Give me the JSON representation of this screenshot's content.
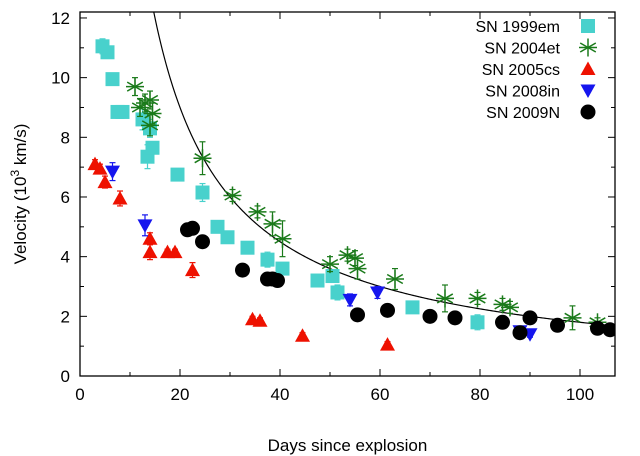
{
  "chart_data": {
    "type": "scatter",
    "xlabel": "Days since explosion",
    "ylabel": {
      "prefix": "Velocity (10",
      "sup": "3",
      "suffix": " km/s)"
    },
    "xlim": [
      0,
      107
    ],
    "ylim": [
      0,
      12.2
    ],
    "x_ticks": [
      "0",
      "20",
      "40",
      "60",
      "80",
      "100"
    ],
    "y_ticks": [
      "0",
      "2",
      "4",
      "6",
      "8",
      "10",
      "12"
    ],
    "grid": false,
    "legend_position": "top-right",
    "series": [
      {
        "name": "SN 1999em",
        "marker": "square",
        "color": "#48d1cc",
        "points": [
          {
            "x": 4.5,
            "y": 11.05,
            "err": 0.25
          },
          {
            "x": 5.5,
            "y": 10.85,
            "err": 0.2
          },
          {
            "x": 6.5,
            "y": 9.95,
            "err": 0.15
          },
          {
            "x": 7.5,
            "y": 8.85,
            "err": 0.15
          },
          {
            "x": 8.5,
            "y": 8.85,
            "err": 0.15
          },
          {
            "x": 12.5,
            "y": 8.6,
            "err": 0.35
          },
          {
            "x": 13.5,
            "y": 7.35,
            "err": 0.4
          },
          {
            "x": 14,
            "y": 8.3,
            "err": 0.3
          },
          {
            "x": 14.5,
            "y": 7.65,
            "err": 0.2
          },
          {
            "x": 19.5,
            "y": 6.75,
            "err": 0.15
          },
          {
            "x": 24.5,
            "y": 6.15,
            "err": 0.3
          },
          {
            "x": 27.5,
            "y": 5.0,
            "err": 0.15
          },
          {
            "x": 29.5,
            "y": 4.65,
            "err": 0.15
          },
          {
            "x": 33.5,
            "y": 4.3,
            "err": 0.15
          },
          {
            "x": 37.5,
            "y": 3.9,
            "err": 0.25
          },
          {
            "x": 40.5,
            "y": 3.6,
            "err": 0.15
          },
          {
            "x": 47.5,
            "y": 3.2,
            "err": 0.2
          },
          {
            "x": 50.5,
            "y": 3.35,
            "err": 0.15
          },
          {
            "x": 51.5,
            "y": 2.8,
            "err": 0.25
          },
          {
            "x": 66.5,
            "y": 2.3,
            "err": 0.15
          },
          {
            "x": 79.5,
            "y": 1.8,
            "err": 0.25
          }
        ]
      },
      {
        "name": "SN 2004et",
        "marker": "asterisk",
        "color": "#1a7a1a",
        "points": [
          {
            "x": 11,
            "y": 9.7,
            "err": 0.3
          },
          {
            "x": 12,
            "y": 9.0,
            "err": 0.3
          },
          {
            "x": 13,
            "y": 9.15,
            "err": 0.3
          },
          {
            "x": 14,
            "y": 9.25,
            "err": 0.3
          },
          {
            "x": 14.5,
            "y": 8.8,
            "err": 0.35
          },
          {
            "x": 14,
            "y": 8.4,
            "err": 0.35
          },
          {
            "x": 24.5,
            "y": 7.3,
            "err": 0.55
          },
          {
            "x": 30.5,
            "y": 6.05,
            "err": 0.2
          },
          {
            "x": 35.5,
            "y": 5.5,
            "err": 0.2
          },
          {
            "x": 38.5,
            "y": 5.1,
            "err": 0.4
          },
          {
            "x": 40.5,
            "y": 4.6,
            "err": 0.6
          },
          {
            "x": 50,
            "y": 3.75,
            "err": 0.25
          },
          {
            "x": 53.5,
            "y": 4.05,
            "err": 0.2
          },
          {
            "x": 55,
            "y": 3.95,
            "err": 0.25
          },
          {
            "x": 55.5,
            "y": 3.6,
            "err": 0.35
          },
          {
            "x": 63,
            "y": 3.25,
            "err": 0.35
          },
          {
            "x": 73,
            "y": 2.6,
            "err": 0.45
          },
          {
            "x": 79.5,
            "y": 2.6,
            "err": 0.2
          },
          {
            "x": 84.5,
            "y": 2.4,
            "err": 0.2
          },
          {
            "x": 86,
            "y": 2.3,
            "err": 0.2
          },
          {
            "x": 98.5,
            "y": 1.95,
            "err": 0.4
          },
          {
            "x": 103.5,
            "y": 1.8,
            "err": 0.15
          }
        ]
      },
      {
        "name": "SN 2005cs",
        "marker": "triangle-up",
        "color": "#ee1100",
        "points": [
          {
            "x": 3,
            "y": 7.1,
            "err": 0.15
          },
          {
            "x": 4,
            "y": 6.95,
            "err": 0.15
          },
          {
            "x": 5,
            "y": 6.5,
            "err": 0.2
          },
          {
            "x": 8,
            "y": 5.95,
            "err": 0.25
          },
          {
            "x": 14,
            "y": 4.6,
            "err": 0.2
          },
          {
            "x": 14,
            "y": 4.15,
            "err": 0.25
          },
          {
            "x": 17.5,
            "y": 4.15,
            "err": 0.1
          },
          {
            "x": 19,
            "y": 4.15,
            "err": 0.1
          },
          {
            "x": 22.5,
            "y": 3.55,
            "err": 0.25
          },
          {
            "x": 34.5,
            "y": 1.9,
            "err": 0.1
          },
          {
            "x": 36,
            "y": 1.85,
            "err": 0.1
          },
          {
            "x": 44.5,
            "y": 1.35,
            "err": 0.1
          },
          {
            "x": 61.5,
            "y": 1.05,
            "err": 0.1
          }
        ]
      },
      {
        "name": "SN 2008in",
        "marker": "triangle-down",
        "color": "#1515ee",
        "points": [
          {
            "x": 6.5,
            "y": 6.85,
            "err": 0.3
          },
          {
            "x": 13,
            "y": 5.05,
            "err": 0.35
          },
          {
            "x": 54,
            "y": 2.55,
            "err": 0.2
          },
          {
            "x": 59.5,
            "y": 2.8,
            "err": 0.2
          },
          {
            "x": 88,
            "y": 1.5,
            "err": 0.1
          },
          {
            "x": 90,
            "y": 1.4,
            "err": 0.1
          }
        ]
      },
      {
        "name": "SN 2009N",
        "marker": "circle",
        "color": "#000000",
        "points": [
          {
            "x": 21.5,
            "y": 4.9
          },
          {
            "x": 22.5,
            "y": 4.95
          },
          {
            "x": 24.5,
            "y": 4.5
          },
          {
            "x": 32.5,
            "y": 3.55
          },
          {
            "x": 37.5,
            "y": 3.25
          },
          {
            "x": 38.5,
            "y": 3.25
          },
          {
            "x": 39.5,
            "y": 3.2
          },
          {
            "x": 55.5,
            "y": 2.05,
            "err": 0.2
          },
          {
            "x": 61.5,
            "y": 2.2
          },
          {
            "x": 70,
            "y": 2.0
          },
          {
            "x": 75,
            "y": 1.95
          },
          {
            "x": 84.5,
            "y": 1.8
          },
          {
            "x": 88,
            "y": 1.45,
            "err": 0.15
          },
          {
            "x": 90,
            "y": 1.95
          },
          {
            "x": 95.5,
            "y": 1.7
          },
          {
            "x": 103.5,
            "y": 1.6
          },
          {
            "x": 106,
            "y": 1.55
          }
        ]
      }
    ],
    "fit_curve": {
      "form": "A / x",
      "A": 180,
      "x_from": 1.4,
      "x_to": 107,
      "color": "#000000"
    }
  }
}
